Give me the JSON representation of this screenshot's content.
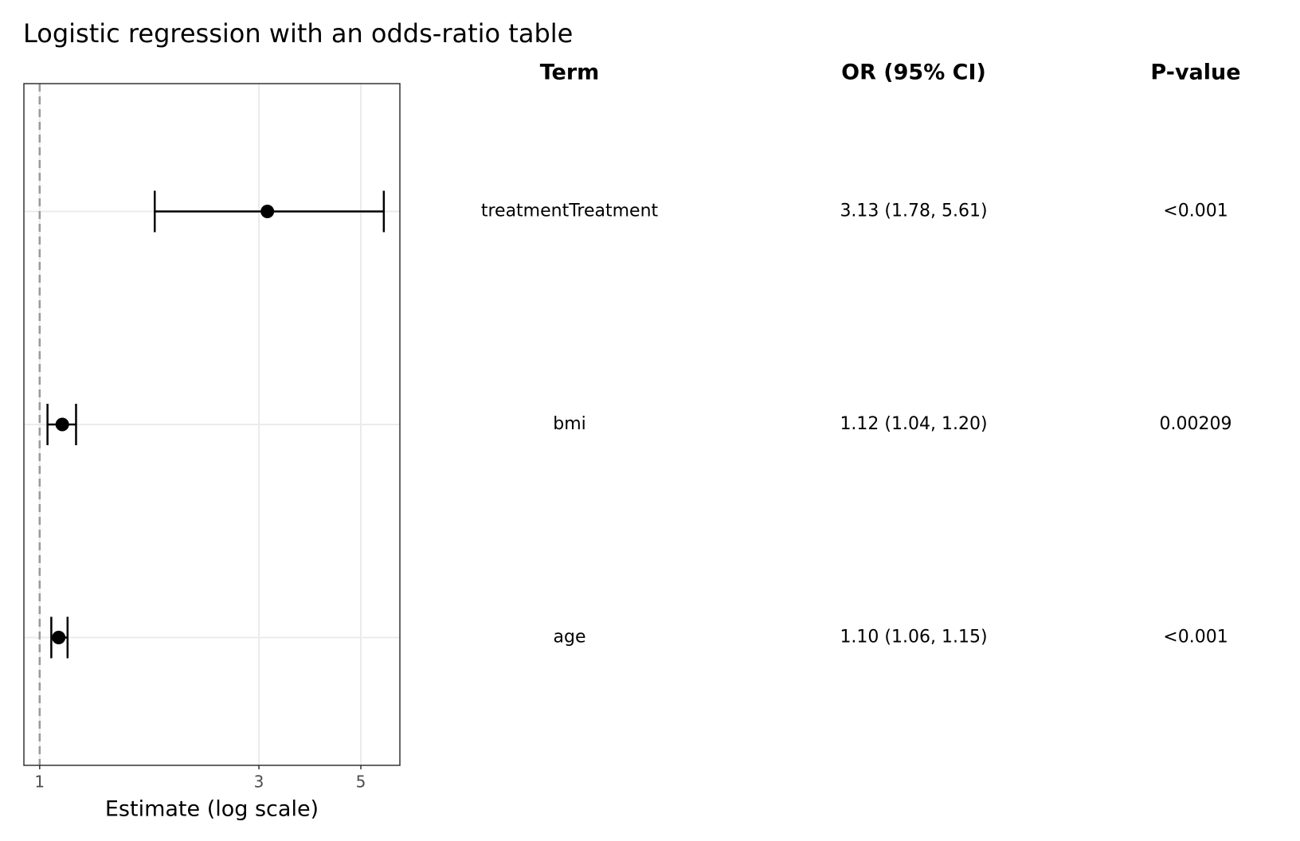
{
  "chart_data": {
    "type": "forest",
    "title": "Logistic regression with an odds-ratio table",
    "x_label": "Estimate (log scale)",
    "log_x": true,
    "reference_line": 1,
    "estimates": [
      3.13,
      1.12,
      1.1
    ],
    "lower": [
      1.78,
      1.04,
      1.06
    ],
    "upper": [
      5.61,
      1.2,
      1.15
    ],
    "xlim": [
      0.924,
      6.08
    ],
    "xticks": [
      1,
      3,
      5
    ],
    "grid": true,
    "color": "#000000"
  },
  "table": {
    "columns": [
      "Term",
      "OR (95% CI)",
      "P-value"
    ],
    "rows": [
      [
        "treatmentTreatment",
        "3.13 (1.78, 5.61)",
        "<0.001"
      ],
      [
        "bmi",
        "1.12 (1.04, 1.20)",
        "0.00209"
      ],
      [
        "age",
        "1.10 (1.06, 1.15)",
        "<0.001"
      ]
    ]
  }
}
